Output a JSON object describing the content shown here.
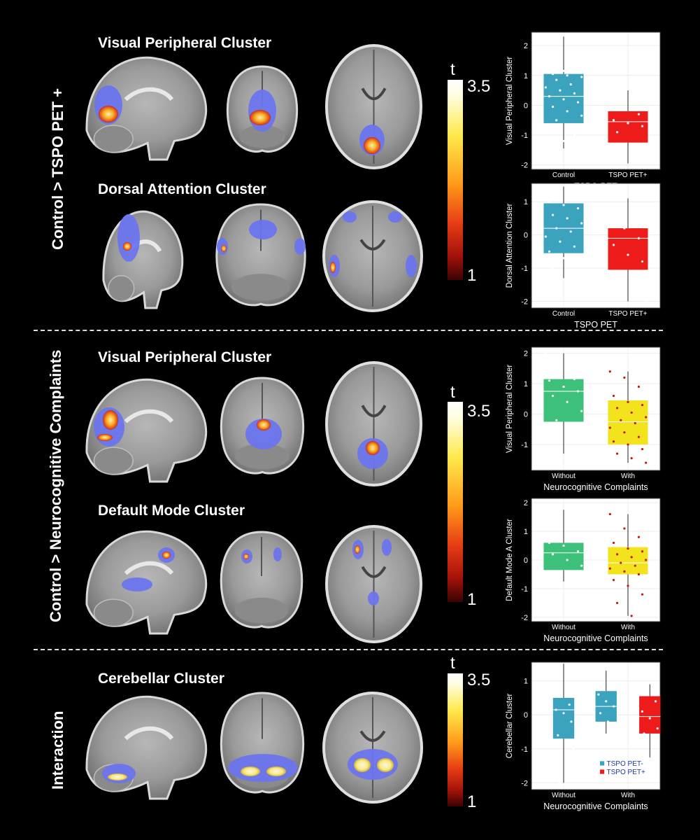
{
  "rows": [
    {
      "label": "Control > TSPO PET +",
      "clusters": [
        {
          "title": "Visual Peripheral Cluster"
        },
        {
          "title": "Dorsal Attention Cluster"
        }
      ]
    },
    {
      "label": "Control > Neurocognitive Complaints",
      "clusters": [
        {
          "title": "Visual Peripheral Cluster"
        },
        {
          "title": "Default Mode Cluster"
        }
      ]
    },
    {
      "label": "Interaction",
      "clusters": [
        {
          "title": "Cerebellar Cluster"
        }
      ]
    }
  ],
  "colorbar": {
    "label": "t",
    "max": "3.5",
    "min": "1"
  },
  "colors": {
    "control_teal": "#3ba3bd",
    "tspo_red": "#ee1b1b",
    "without_green": "#3cc07a",
    "with_yellow": "#f2e31c",
    "cluster_blue": "#6a75ee",
    "panel_bg": "#ffffff"
  },
  "chart_data": [
    {
      "type": "box",
      "ylabel": "Visual Peripheral Cluster",
      "xlabel": "TSPO PET",
      "categories": [
        "Control",
        "TSPO PET+"
      ],
      "yticks": [
        -2,
        -1,
        0,
        1,
        2
      ],
      "ylim": [
        -2.15,
        2.45
      ],
      "boxes": [
        {
          "name": "Control",
          "color": "#3ba3bd",
          "q1": -0.6,
          "median": 0.3,
          "q3": 1.05,
          "whisker_low": -1.45,
          "whisker_high": 2.3,
          "points": [
            2.2,
            1.75,
            1.55,
            1.2,
            1.15,
            1.1,
            1.05,
            1.0,
            0.95,
            0.85,
            0.7,
            0.6,
            0.5,
            0.4,
            0.3,
            0.2,
            0.1,
            -0.05,
            -0.2,
            -0.35,
            -0.5,
            -0.65,
            -0.8,
            -0.9,
            -1.0,
            -1.1,
            -1.2,
            -1.3,
            -1.45
          ]
        },
        {
          "name": "TSPO PET+",
          "color": "#ee1b1b",
          "q1": -1.25,
          "median": -0.55,
          "q3": -0.2,
          "whisker_low": -1.95,
          "whisker_high": 0.5,
          "points": [
            0.5,
            0.1,
            -0.3,
            -0.5,
            -0.6,
            -0.7,
            -0.9,
            -1.3,
            -1.5,
            -1.95
          ]
        }
      ]
    },
    {
      "type": "box",
      "ylabel": "Dorsal Attention Cluster",
      "xlabel": "TSPO PET",
      "categories": [
        "Control",
        "TSPO PET+"
      ],
      "yticks": [
        -2,
        -1,
        0,
        1
      ],
      "ylim": [
        -2.2,
        1.55
      ],
      "boxes": [
        {
          "name": "Control",
          "color": "#3ba3bd",
          "q1": -0.55,
          "median": 0.2,
          "q3": 0.95,
          "whisker_low": -1.3,
          "whisker_high": 1.45,
          "points": [
            1.45,
            1.3,
            1.2,
            1.0,
            0.9,
            0.8,
            0.6,
            0.5,
            0.35,
            0.2,
            0.1,
            -0.05,
            -0.2,
            -0.35,
            -0.5,
            -0.7,
            -0.9,
            -1.0,
            -1.1,
            -1.2,
            -1.3
          ]
        },
        {
          "name": "TSPO PET+",
          "color": "#ee1b1b",
          "q1": -1.05,
          "median": -0.1,
          "q3": 0.2,
          "whisker_low": -2.0,
          "whisker_high": 1.1,
          "points": [
            1.1,
            0.2,
            -0.1,
            -0.3,
            -0.6,
            -0.8,
            -1.2,
            -1.6,
            -2.0
          ]
        }
      ]
    },
    {
      "type": "box",
      "ylabel": "Visual Peripheral Cluster",
      "xlabel": "Neurocognitive Complaints",
      "categories": [
        "Without",
        "With"
      ],
      "yticks": [
        -1,
        0,
        1,
        2
      ],
      "ylim": [
        -1.85,
        2.2
      ],
      "boxes": [
        {
          "name": "Without",
          "color": "#3cc07a",
          "q1": -0.25,
          "median": 0.75,
          "q3": 1.15,
          "whisker_low": -1.3,
          "whisker_high": 2.0,
          "points": [
            2.0,
            1.2,
            1.15,
            1.1,
            0.9,
            0.75,
            0.6,
            0.4,
            0.1,
            -0.2,
            -0.5,
            -0.9,
            -1.3
          ]
        },
        {
          "name": "With",
          "color": "#f2e31c",
          "q1": -1.0,
          "median": -0.25,
          "q3": 0.45,
          "whisker_low": -1.6,
          "whisker_high": 1.4,
          "points": [
            1.4,
            1.2,
            0.9,
            0.6,
            0.4,
            0.3,
            0.2,
            0.05,
            -0.1,
            -0.2,
            -0.3,
            -0.45,
            -0.6,
            -0.75,
            -0.9,
            -1.0,
            -1.15,
            -1.3,
            -1.45,
            -1.6
          ]
        }
      ]
    },
    {
      "type": "box",
      "ylabel": "Default Mode A Cluster",
      "xlabel": "Neurocognitive Complaints",
      "categories": [
        "Without",
        "With"
      ],
      "yticks": [
        -2,
        -1,
        0,
        1,
        2
      ],
      "ylim": [
        -2.15,
        2.15
      ],
      "boxes": [
        {
          "name": "Without",
          "color": "#3cc07a",
          "q1": -0.35,
          "median": 0.25,
          "q3": 0.6,
          "whisker_low": -0.75,
          "whisker_high": 1.75,
          "points": [
            1.75,
            1.3,
            1.1,
            0.6,
            0.5,
            0.3,
            0.2,
            0.0,
            -0.2,
            -0.4,
            -0.55,
            -0.75
          ]
        },
        {
          "name": "With",
          "color": "#f2e31c",
          "q1": -0.5,
          "median": -0.1,
          "q3": 0.45,
          "whisker_low": -1.95,
          "whisker_high": 1.6,
          "points": [
            1.6,
            1.1,
            0.8,
            0.6,
            0.4,
            0.3,
            0.2,
            0.1,
            0.0,
            -0.1,
            -0.2,
            -0.3,
            -0.4,
            -0.5,
            -0.7,
            -0.9,
            -1.2,
            -1.5,
            -1.95
          ]
        }
      ]
    },
    {
      "type": "box",
      "ylabel": "Cerebellar Cluster",
      "xlabel": "Neurocognitive Complaints",
      "categories": [
        "Without",
        "With"
      ],
      "yticks": [
        -2,
        -1,
        0,
        1
      ],
      "ylim": [
        -2.2,
        1.55
      ],
      "legend": {
        "position": "bottom-right",
        "entries": [
          {
            "name": "TSPO PET-",
            "color": "#3ba3bd"
          },
          {
            "name": "TSPO PET+",
            "color": "#ee1b1b"
          }
        ]
      },
      "boxes": [
        {
          "name": "Without",
          "category": "Without",
          "color": "#3ba3bd",
          "q1": -0.7,
          "median": 0.15,
          "q3": 0.5,
          "whisker_low": -2.0,
          "whisker_high": 1.5,
          "points": [
            1.5,
            0.55,
            0.3,
            0.15,
            0.05,
            -0.2,
            -0.6,
            -0.85,
            -1.0,
            -2.0
          ]
        },
        {
          "name": "TSPO PET-",
          "category": "With",
          "offset": -0.17,
          "color": "#3ba3bd",
          "q1": -0.2,
          "median": 0.25,
          "q3": 0.7,
          "whisker_low": -0.55,
          "whisker_high": 1.3,
          "points": [
            1.3,
            1.05,
            0.8,
            0.6,
            0.4,
            0.25,
            0.05,
            -0.2,
            -0.4,
            -0.55
          ]
        },
        {
          "name": "TSPO PET+",
          "category": "With",
          "offset": 0.17,
          "color": "#ee1b1b",
          "q1": -0.55,
          "median": -0.05,
          "q3": 0.55,
          "whisker_low": -1.25,
          "whisker_high": 0.9,
          "points": [
            0.9,
            0.6,
            0.4,
            0.1,
            -0.1,
            -0.4,
            -0.55,
            -1.25
          ]
        }
      ]
    }
  ]
}
